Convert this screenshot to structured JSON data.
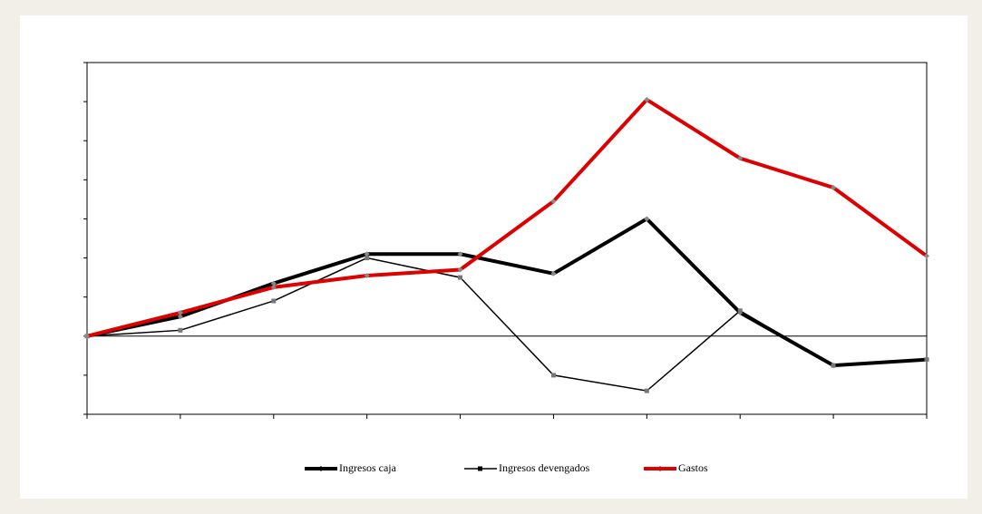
{
  "chart_data": {
    "type": "line",
    "categories": [
      null,
      null,
      null,
      null,
      null,
      null,
      null,
      null,
      null,
      null
    ],
    "series": [
      {
        "name": "Ingresos caja",
        "color": "#000000",
        "values": [
          0,
          0.5,
          1.35,
          2.1,
          2.1,
          1.6,
          3.0,
          0.6,
          -0.75,
          -0.6
        ]
      },
      {
        "name": "Ingresos devengados",
        "color": "#000000",
        "values": [
          0,
          0.15,
          0.9,
          2.0,
          1.5,
          -1.0,
          -1.4,
          0.65,
          -0.75,
          -0.6
        ]
      },
      {
        "name": "Gastos",
        "color": "#dd0000",
        "values": [
          0,
          0.6,
          1.25,
          1.55,
          1.7,
          3.45,
          6.05,
          4.55,
          3.8,
          2.05
        ]
      }
    ],
    "ylim": [
      -2,
      7
    ],
    "yticks": [
      -2,
      -1,
      0,
      1,
      2,
      3,
      4,
      5,
      6,
      7
    ],
    "legend": "bottom"
  }
}
